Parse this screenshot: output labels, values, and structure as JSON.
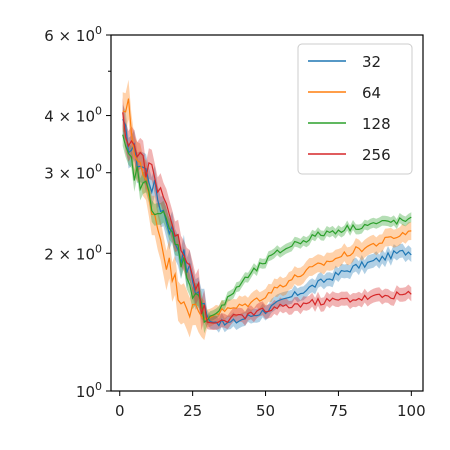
{
  "chart_data": {
    "type": "line",
    "title": "",
    "xlabel": "",
    "ylabel": "",
    "x_scale": "linear",
    "y_scale": "log",
    "xlim": [
      -3,
      104
    ],
    "ylim": [
      1,
      6
    ],
    "x_ticks": [
      0,
      25,
      50,
      75,
      100
    ],
    "x_tick_labels": [
      "0",
      "25",
      "50",
      "75",
      "100"
    ],
    "y_ticks": [
      1,
      2,
      3,
      4,
      6
    ],
    "y_tick_base": [
      "10",
      "2 × 10",
      "3 × 10",
      "4 × 10",
      "6 × 10"
    ],
    "y_tick_exp": [
      "0",
      "0",
      "0",
      "0",
      "0"
    ],
    "grid": false,
    "legend_position": "top-right",
    "x": [
      1,
      3,
      5,
      7,
      10,
      13,
      16,
      19,
      22,
      25,
      28,
      30,
      33,
      36,
      40,
      45,
      50,
      55,
      60,
      65,
      70,
      75,
      80,
      85,
      90,
      95,
      100
    ],
    "series": [
      {
        "name": "32",
        "color": "#1f77b4",
        "values": [
          3.75,
          3.5,
          3.3,
          3.15,
          2.95,
          2.65,
          2.4,
          2.15,
          1.95,
          1.75,
          1.58,
          1.45,
          1.42,
          1.4,
          1.42,
          1.46,
          1.5,
          1.56,
          1.62,
          1.68,
          1.74,
          1.8,
          1.86,
          1.9,
          1.95,
          2.0,
          2.02
        ],
        "spread": 0.035
      },
      {
        "name": "64",
        "color": "#ff7f0e",
        "values": [
          3.9,
          4.4,
          3.3,
          3.05,
          2.7,
          2.3,
          1.95,
          1.72,
          1.6,
          1.5,
          1.44,
          1.45,
          1.48,
          1.5,
          1.52,
          1.56,
          1.62,
          1.7,
          1.77,
          1.84,
          1.9,
          1.96,
          2.02,
          2.07,
          2.12,
          2.18,
          2.24
        ],
        "spread": 0.045
      },
      {
        "name": "128",
        "color": "#2ca02c",
        "values": [
          3.45,
          3.2,
          3.05,
          2.85,
          2.7,
          2.5,
          2.3,
          2.1,
          1.9,
          1.68,
          1.5,
          1.45,
          1.48,
          1.55,
          1.68,
          1.8,
          1.92,
          2.02,
          2.1,
          2.16,
          2.21,
          2.25,
          2.28,
          2.31,
          2.33,
          2.35,
          2.36
        ],
        "spread": 0.025
      },
      {
        "name": "256",
        "color": "#d62728",
        "values": [
          3.85,
          3.6,
          3.4,
          3.25,
          3.05,
          2.8,
          2.55,
          2.3,
          2.05,
          1.8,
          1.55,
          1.4,
          1.41,
          1.43,
          1.45,
          1.47,
          1.5,
          1.52,
          1.54,
          1.56,
          1.57,
          1.58,
          1.59,
          1.6,
          1.61,
          1.62,
          1.63
        ],
        "spread": 0.035
      }
    ]
  }
}
